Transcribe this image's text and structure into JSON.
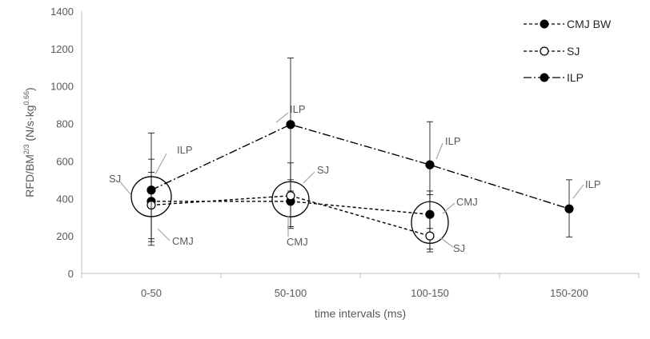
{
  "chart_data": {
    "type": "line",
    "xlabel": "time intervals (ms)",
    "ylabel": {
      "main": "RFD/BM",
      "sup1": "2/3",
      "mid": " (N/s·kg",
      "sup2": "0.66",
      "end": ")"
    },
    "categories": [
      "0-50",
      "50-100",
      "100-150",
      "150-200"
    ],
    "ylim": [
      0,
      1400
    ],
    "yticks": [
      0,
      200,
      400,
      600,
      800,
      1000,
      1200,
      1400
    ],
    "grid": false,
    "legend_position": "top-right",
    "series": [
      {
        "name": "CMJ BW",
        "marker": "filled-circle",
        "line": "dashed",
        "color": "#000000",
        "values": [
          385,
          385,
          315,
          null
        ],
        "error_low": [
          150,
          250,
          130,
          null
        ],
        "error_high": [
          540,
          500,
          440,
          null
        ]
      },
      {
        "name": "SJ",
        "marker": "open-circle",
        "line": "dashed",
        "color": "#000000",
        "values": [
          365,
          415,
          200,
          null
        ],
        "error_low": [
          170,
          240,
          115,
          null
        ],
        "error_high": [
          610,
          590,
          420,
          null
        ]
      },
      {
        "name": "ILP",
        "marker": "filled-circle",
        "line": "dash-dot",
        "color": "#000000",
        "values": [
          445,
          795,
          580,
          345
        ],
        "error_low": [
          185,
          440,
          240,
          195
        ],
        "error_high": [
          750,
          1150,
          810,
          500
        ]
      }
    ],
    "annotations": [
      {
        "text": "ILP",
        "category": "0-50"
      },
      {
        "text": "SJ",
        "category": "0-50"
      },
      {
        "text": "CMJ",
        "category": "0-50"
      },
      {
        "text": "ILP",
        "category": "50-100"
      },
      {
        "text": "SJ",
        "category": "50-100"
      },
      {
        "text": "CMJ",
        "category": "50-100"
      },
      {
        "text": "ILP",
        "category": "100-150"
      },
      {
        "text": "CMJ",
        "category": "100-150"
      },
      {
        "text": "SJ",
        "category": "100-150"
      },
      {
        "text": "ILP",
        "category": "150-200"
      }
    ]
  }
}
